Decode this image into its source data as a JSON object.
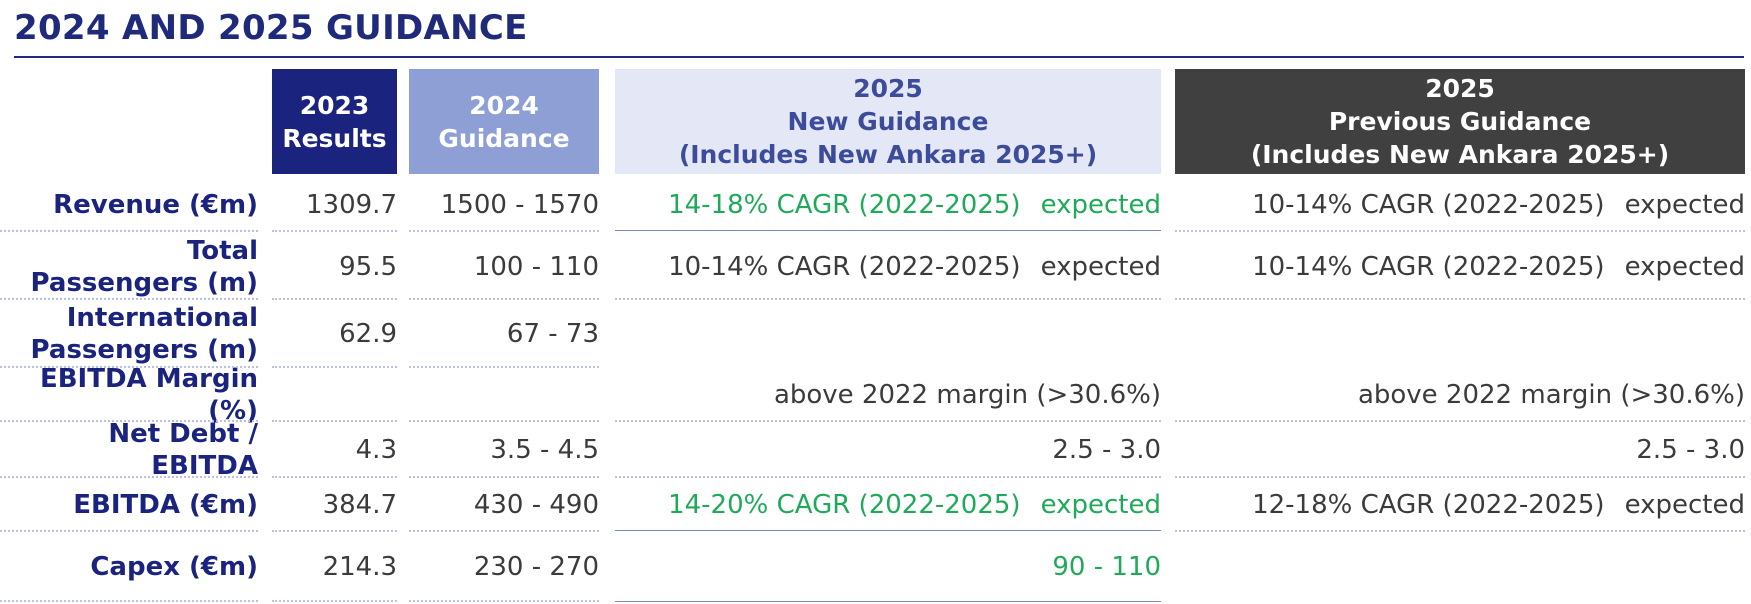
{
  "title": "2024 AND 2025 GUIDANCE",
  "headers": {
    "col1": [
      "2023",
      "Results"
    ],
    "col2": [
      "2024",
      "Guidance"
    ],
    "col3": [
      "2025",
      "New Guidance",
      "(Includes New Ankara 2025+)"
    ],
    "col4": [
      "2025",
      "Previous Guidance",
      "(Includes New Ankara 2025+)"
    ]
  },
  "rows": [
    {
      "label": [
        "Revenue (€m)"
      ],
      "results": "1309.7",
      "guidance2024": "1500 - 1570",
      "new_guidance": "14-18% CAGR (2022-2025)",
      "new_guidance_suffix": "expected",
      "prev_guidance": "10-14% CAGR (2022-2025)",
      "prev_guidance_suffix": "expected"
    },
    {
      "label": [
        "Total",
        "Passengers (m)"
      ],
      "results": "95.5",
      "guidance2024": "100 - 110",
      "new_guidance": "10-14% CAGR (2022-2025)",
      "new_guidance_suffix": "expected",
      "prev_guidance": "10-14% CAGR (2022-2025)",
      "prev_guidance_suffix": "expected"
    },
    {
      "label": [
        "International",
        "Passengers (m)"
      ],
      "results": "62.9",
      "guidance2024": "67 - 73",
      "new_guidance": "",
      "new_guidance_suffix": "",
      "prev_guidance": "",
      "prev_guidance_suffix": ""
    },
    {
      "label": [
        "EBITDA Margin (%)"
      ],
      "results": "",
      "guidance2024": "",
      "new_guidance": "above 2022 margin (>30.6%)",
      "new_guidance_suffix": "",
      "prev_guidance": "above 2022 margin (>30.6%)",
      "prev_guidance_suffix": ""
    },
    {
      "label": [
        "Net Debt / EBITDA"
      ],
      "results": "4.3",
      "guidance2024": "3.5 - 4.5",
      "new_guidance": "2.5 - 3.0",
      "new_guidance_suffix": "",
      "prev_guidance": "2.5 - 3.0",
      "prev_guidance_suffix": ""
    },
    {
      "label": [
        "EBITDA (€m)"
      ],
      "results": "384.7",
      "guidance2024": "430 - 490",
      "new_guidance": "14-20% CAGR (2022-2025)",
      "new_guidance_suffix": "expected",
      "prev_guidance": "12-18% CAGR (2022-2025)",
      "prev_guidance_suffix": "expected"
    },
    {
      "label": [
        "Capex (€m)"
      ],
      "results": "214.3",
      "guidance2024": "230 - 270",
      "new_guidance": "90 - 110",
      "new_guidance_suffix": "",
      "prev_guidance": "",
      "prev_guidance_suffix": ""
    }
  ],
  "colors": {
    "title": "#1f2a7a",
    "header_2023": "#1a237e",
    "header_2024": "#8e9fd6",
    "header_2025_new": "#e3e7f6",
    "header_2025_prev": "#404040",
    "updated_value_green": "#1faa59"
  }
}
